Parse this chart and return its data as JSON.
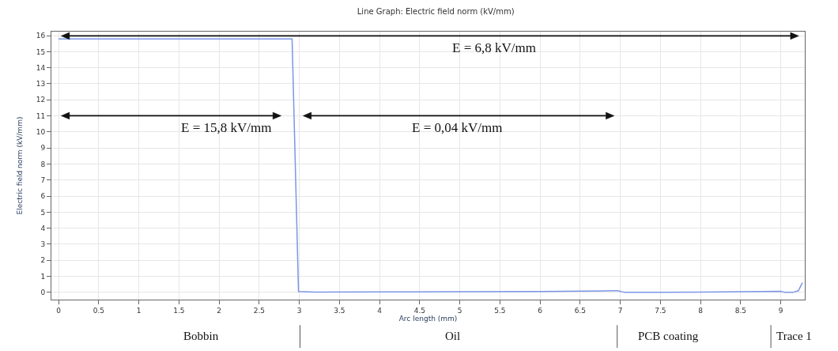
{
  "chart_data": {
    "type": "line",
    "title": "Line Graph: Electric field norm (kV/mm)",
    "xlabel": "Arc length (mm)",
    "ylabel": "Electric field norm (kV/mm)",
    "x": [
      0,
      1,
      2,
      2.91,
      2.99,
      3.2,
      4,
      5,
      6,
      6.9,
      6.97,
      7.05,
      7.5,
      8,
      8.5,
      9.0,
      9.05,
      9.15,
      9.22,
      9.27
    ],
    "series": [
      {
        "color": "#7b96e6",
        "values": [
          15.8,
          15.8,
          15.8,
          15.8,
          0.05,
          0.02,
          0.03,
          0.04,
          0.05,
          0.1,
          0.1,
          0.0,
          0.0,
          0.02,
          0.04,
          0.07,
          0.0,
          0.0,
          0.1,
          0.6
        ]
      }
    ],
    "xlim": [
      -0.09,
      9.3
    ],
    "ylim": [
      -0.45,
      16.25
    ],
    "xticks": [
      0,
      0.5,
      1,
      1.5,
      2,
      2.5,
      3,
      3.5,
      4,
      4.5,
      5,
      5.5,
      6,
      6.5,
      7,
      7.5,
      8,
      8.5,
      9
    ],
    "yticks": [
      0,
      1,
      2,
      3,
      4,
      5,
      6,
      7,
      8,
      9,
      10,
      11,
      12,
      13,
      14,
      15,
      16
    ],
    "grid": true,
    "marker": "none",
    "line_style": "solid",
    "annotations": [
      "E = 15,8 kV/mm",
      "E = 0,04 kV/mm",
      "E = 6,8 kV/mm",
      "Bobbin",
      "Oil",
      "PCB coating",
      "Trace 1"
    ]
  }
}
